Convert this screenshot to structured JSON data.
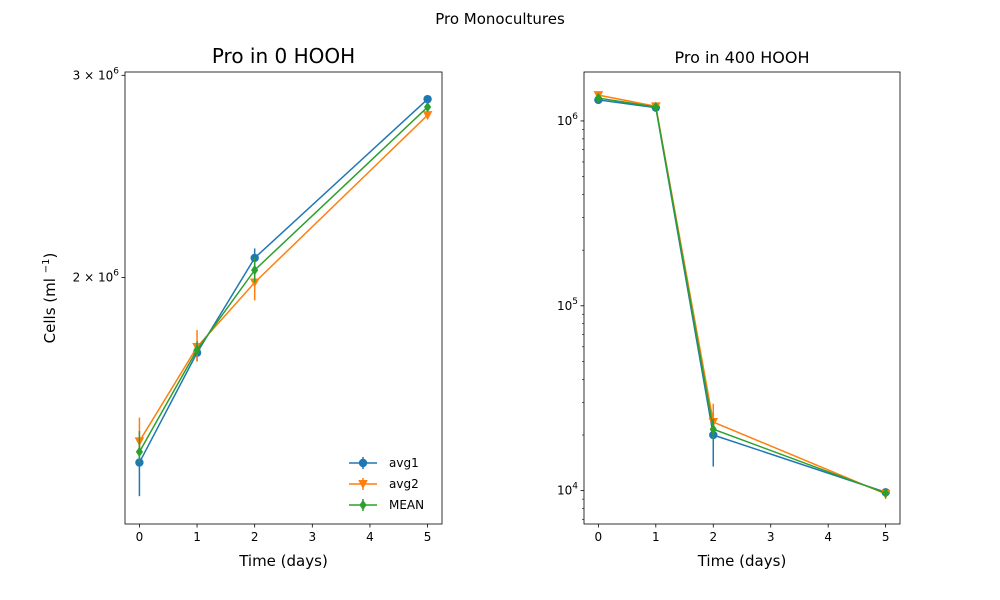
{
  "figure": {
    "suptitle": "Pro  Monocultures"
  },
  "colors": {
    "avg1": "#1f77b4",
    "avg2": "#ff7f0e",
    "MEAN": "#2ca02c",
    "axes": "#000000",
    "background": "#ffffff"
  },
  "chart_data": [
    {
      "type": "line",
      "title": "Pro in 0 HOOH",
      "xlabel": "Time (days)",
      "ylabel": "Cells (ml $^{-1}$)",
      "ylabel_display": "Cells (ml",
      "ylabel_sup": "−1",
      "ylabel_close": ")",
      "yscale": "log",
      "xlim": [
        -0.25,
        5.25
      ],
      "ylim": [
        1220000,
        3020000
      ],
      "xticks": [
        0,
        1,
        2,
        3,
        4,
        5
      ],
      "xtick_labels": [
        "0",
        "1",
        "2",
        "3",
        "4",
        "5"
      ],
      "yticks": [
        2000000,
        3000000
      ],
      "ytick_labels": [
        {
          "mant": "2",
          "exp": "6"
        },
        {
          "mant": "3",
          "exp": "6"
        }
      ],
      "legend": {
        "placement": "lower right",
        "frame": false
      },
      "series": [
        {
          "name": "avg1",
          "marker": "circle",
          "x": [
            0,
            1,
            2,
            5
          ],
          "y": [
            1380000,
            1720000,
            2080000,
            2860000
          ],
          "yerr_low": [
            1290000,
            1690000,
            2030000,
            2850000
          ],
          "yerr_high": [
            1440000,
            1750000,
            2120000,
            2870000
          ]
        },
        {
          "name": "avg2",
          "marker": "triangle_down",
          "x": [
            0,
            1,
            2,
            5
          ],
          "y": [
            1440000,
            1740000,
            1980000,
            2770000
          ],
          "yerr_low": [
            1400000,
            1690000,
            1910000,
            2750000
          ],
          "yerr_high": [
            1510000,
            1800000,
            2040000,
            2790000
          ]
        },
        {
          "name": "MEAN",
          "marker": "diamond",
          "x": [
            0,
            1,
            2,
            5
          ],
          "y": [
            1410000,
            1730000,
            2030000,
            2815000
          ],
          "yerr_low": [
            1380000,
            1710000,
            1980000,
            2800000
          ],
          "yerr_high": [
            1470000,
            1760000,
            2080000,
            2830000
          ]
        }
      ]
    },
    {
      "type": "line",
      "title": "Pro in 400 HOOH",
      "xlabel": "Time (days)",
      "ylabel": "",
      "yscale": "log",
      "xlim": [
        -0.25,
        5.25
      ],
      "ylim": [
        6600,
        1840000
      ],
      "xticks": [
        0,
        1,
        2,
        3,
        4,
        5
      ],
      "xtick_labels": [
        "0",
        "1",
        "2",
        "3",
        "4",
        "5"
      ],
      "yticks": [
        10000,
        100000,
        1000000
      ],
      "ytick_labels": [
        {
          "mant": "10",
          "exp": "4"
        },
        {
          "mant": "10",
          "exp": "5"
        },
        {
          "mant": "10",
          "exp": "6"
        }
      ],
      "series": [
        {
          "name": "avg1",
          "marker": "circle",
          "x": [
            0,
            1,
            2,
            5
          ],
          "y": [
            1300000,
            1180000,
            20000,
            9800
          ],
          "yerr_low": [
            1250000,
            1130000,
            13500,
            9200
          ],
          "yerr_high": [
            1350000,
            1220000,
            26000,
            10300
          ]
        },
        {
          "name": "avg2",
          "marker": "triangle_down",
          "x": [
            0,
            1,
            2,
            5
          ],
          "y": [
            1380000,
            1200000,
            23500,
            9600
          ],
          "yerr_low": [
            1320000,
            1150000,
            19500,
            9000
          ],
          "yerr_high": [
            1440000,
            1250000,
            29500,
            10300
          ]
        },
        {
          "name": "MEAN",
          "marker": "diamond",
          "x": [
            0,
            1,
            2,
            5
          ],
          "y": [
            1330000,
            1190000,
            21500,
            9700
          ],
          "yerr_low": [
            1290000,
            1160000,
            19000,
            9300
          ],
          "yerr_high": [
            1370000,
            1220000,
            24500,
            10100
          ]
        }
      ]
    }
  ]
}
